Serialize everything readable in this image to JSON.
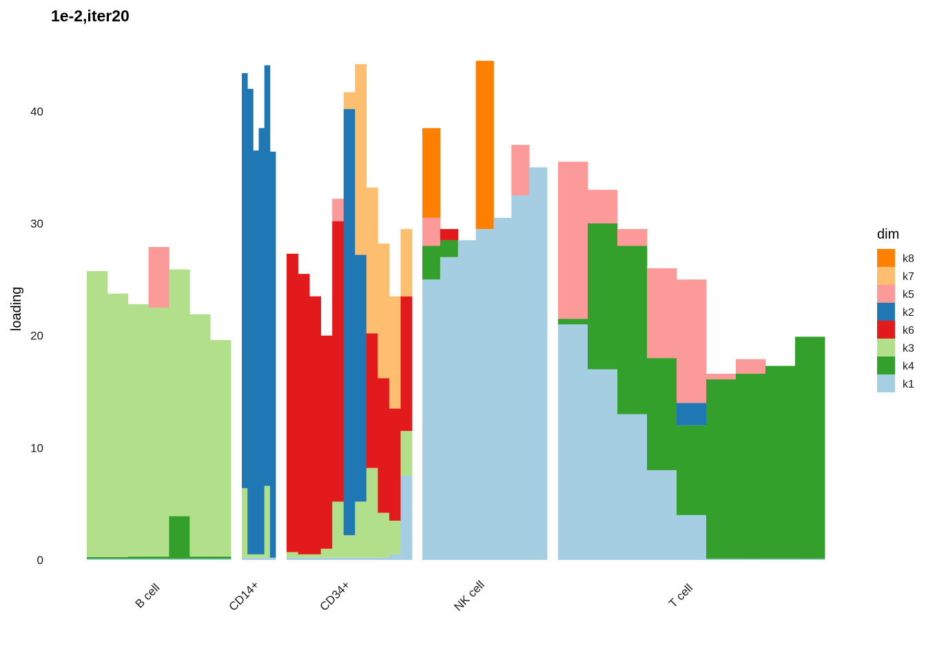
{
  "chart_data": {
    "type": "bar",
    "subtype": "stacked-structure-plot",
    "title": "1e-2,iter20",
    "xlabel": "",
    "ylabel": "loading",
    "ylim": [
      0,
      45
    ],
    "yticks": [
      0,
      10,
      20,
      30,
      40
    ],
    "grid": false,
    "legend_title": "dim",
    "legend_position": "right",
    "legend": [
      {
        "name": "k8",
        "color": "#FF7F00"
      },
      {
        "name": "k7",
        "color": "#FDBF6F"
      },
      {
        "name": "k5",
        "color": "#FB9A99"
      },
      {
        "name": "k2",
        "color": "#1F78B4"
      },
      {
        "name": "k6",
        "color": "#E31A1C"
      },
      {
        "name": "k3",
        "color": "#B2DF8A"
      },
      {
        "name": "k4",
        "color": "#33A02C"
      },
      {
        "name": "k1",
        "color": "#A6CEE3"
      }
    ],
    "groups": [
      {
        "name": "B cell",
        "profiles": [
          {
            "k3": 25.5,
            "k4": 0.15,
            "k1": 0.1
          },
          {
            "k3": 23.5,
            "k4": 0.15,
            "k1": 0.1
          },
          {
            "k3": 22.5,
            "k4": 0.2,
            "k1": 0.1
          },
          {
            "k3": 22.2,
            "k5": 5.4,
            "k4": 0.2,
            "k1": 0.1
          },
          {
            "k3": 22.0,
            "k4": 3.8,
            "k1": 0.1
          },
          {
            "k3": 21.6,
            "k4": 0.2,
            "k1": 0.1
          },
          {
            "k3": 19.3,
            "k4": 0.2,
            "k1": 0.1
          }
        ]
      },
      {
        "name": "CD14+",
        "profiles": [
          {
            "k2": 37.0,
            "k3": 6.2,
            "k1": 0.2
          },
          {
            "k2": 41.5,
            "k3": 0.3,
            "k1": 0.2
          },
          {
            "k2": 36.0,
            "k3": 0.3,
            "k1": 0.2
          },
          {
            "k2": 38.0,
            "k3": 0.3,
            "k1": 0.2
          },
          {
            "k2": 37.5,
            "k3": 6.4,
            "k1": 0.2
          },
          {
            "k2": 36.2,
            "k1": 0.2
          }
        ]
      },
      {
        "name": "CD34+",
        "profiles": [
          {
            "k6": 26.6,
            "k3": 0.5,
            "k1": 0.2
          },
          {
            "k6": 25.0,
            "k3": 0.3,
            "k1": 0.2
          },
          {
            "k6": 23.0,
            "k3": 0.3,
            "k1": 0.2
          },
          {
            "k6": 19.0,
            "k3": 0.8,
            "k1": 0.2
          },
          {
            "k6": 25.0,
            "k3": 5.0,
            "k5": 2.0,
            "k1": 0.2
          },
          {
            "k2": 38.0,
            "k3": 2.0,
            "k7": 1.5,
            "k1": 0.2
          },
          {
            "k2": 22.0,
            "k7": 17.0,
            "k3": 5.0,
            "k1": 0.2
          },
          {
            "k7": 13.0,
            "k6": 12.0,
            "k3": 8.0,
            "k1": 0.2
          },
          {
            "k7": 12.0,
            "k6": 12.0,
            "k3": 4.0,
            "k1": 0.2
          },
          {
            "k7": 10.0,
            "k6": 10.0,
            "k3": 3.0,
            "k1": 0.5
          },
          {
            "k6": 12.0,
            "k3": 4.0,
            "k7": 6.0,
            "k1": 7.5
          }
        ]
      },
      {
        "name": "NK cell",
        "profiles": [
          {
            "k1": 25.0,
            "k4": 3.0,
            "k5": 2.5,
            "k8": 8.0
          },
          {
            "k1": 27.0,
            "k4": 1.5,
            "k6": 1.0
          },
          {
            "k1": 28.5
          },
          {
            "k1": 29.5,
            "k8": 15.0
          },
          {
            "k1": 30.5
          },
          {
            "k1": 32.5,
            "k5": 4.5
          },
          {
            "k1": 35.0
          }
        ]
      },
      {
        "name": "T cell",
        "profiles": [
          {
            "k1": 21.0,
            "k4": 0.5,
            "k5": 14.0
          },
          {
            "k1": 17.0,
            "k4": 13.0,
            "k5": 3.0
          },
          {
            "k1": 13.0,
            "k4": 15.0,
            "k5": 1.5
          },
          {
            "k1": 8.0,
            "k4": 10.0,
            "k5": 8.0
          },
          {
            "k1": 4.0,
            "k2": 2.0,
            "k4": 8.0,
            "k5": 11.0
          },
          {
            "k4": 16.0,
            "k5": 0.5,
            "k1": 0.1
          },
          {
            "k4": 16.5,
            "k5": 1.3,
            "k1": 0.1
          },
          {
            "k4": 17.2,
            "k1": 0.1
          },
          {
            "k4": 19.8,
            "k1": 0.1
          }
        ]
      }
    ]
  }
}
